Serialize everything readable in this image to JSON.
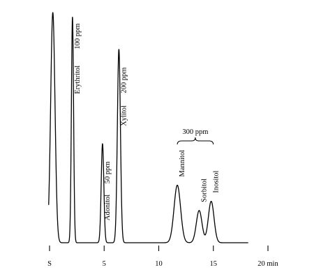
{
  "chart_data": {
    "type": "line",
    "title": "",
    "xlabel": "",
    "ylabel": "",
    "x_unit": "min",
    "xlim": [
      -0.3,
      21
    ],
    "ylim": [
      0,
      1
    ],
    "grid": false,
    "legend": "none",
    "x_ticks": [
      {
        "value": 0,
        "label": "S"
      },
      {
        "value": 5,
        "label": "5"
      },
      {
        "value": 10,
        "label": "10"
      },
      {
        "value": 15,
        "label": "15"
      },
      {
        "value": 20,
        "label": "20 min"
      }
    ],
    "series": [
      {
        "peaks": [
          {
            "t": 0.3,
            "h": 1.0,
            "w": 0.2,
            "label": "",
            "conc": ""
          },
          {
            "t": 2.1,
            "h": 0.98,
            "w": 0.1,
            "label": "Erythritol",
            "conc": "100 ppm"
          },
          {
            "t": 4.85,
            "h": 0.43,
            "w": 0.12,
            "label": "Adonitol",
            "conc": "50 ppm"
          },
          {
            "t": 6.35,
            "h": 0.84,
            "w": 0.14,
            "label": "Xylitol",
            "conc": "200 ppm"
          },
          {
            "t": 11.7,
            "h": 0.25,
            "w": 0.3,
            "label": "Mannitol",
            "conc": ""
          },
          {
            "t": 13.7,
            "h": 0.14,
            "w": 0.26,
            "label": "Sorbitol",
            "conc": ""
          },
          {
            "t": 14.8,
            "h": 0.18,
            "w": 0.26,
            "label": "Inositol",
            "conc": ""
          }
        ]
      }
    ],
    "annotations": [
      {
        "text": "300 ppm",
        "spans": [
          "Mannitol",
          "Sorbitol",
          "Inositol"
        ]
      }
    ]
  }
}
